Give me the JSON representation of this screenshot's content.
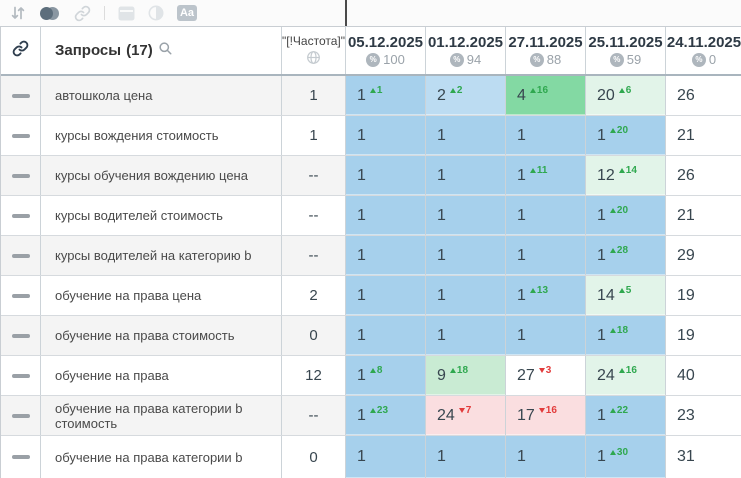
{
  "toolbar": {
    "aa_label": "Aa",
    "icons": [
      "sort-icon",
      "toggle-circles-icon",
      "link-icon",
      "window-icon",
      "contrast-icon",
      "text-style-icon"
    ]
  },
  "colors": {
    "palette": {
      "b1": "#a6d0ec",
      "b2": "#bcdcf2",
      "g1": "#83d9a3",
      "g2": "#c9ebd3",
      "g3": "#e2f4e9",
      "r1": "#fadee0",
      "w": "#ffffff"
    },
    "delta_up": "#2fa84f",
    "delta_down": "#e23b3b"
  },
  "table": {
    "header": {
      "queries_label": "Запросы",
      "queries_count": "(17)",
      "frequency_label": "\"[!Частота]\"",
      "percent_symbol": "%",
      "dates": [
        {
          "date": "05.12.2025",
          "percent": "100"
        },
        {
          "date": "01.12.2025",
          "percent": "94"
        },
        {
          "date": "27.11.2025",
          "percent": "88"
        },
        {
          "date": "25.11.2025",
          "percent": "59"
        },
        {
          "date": "24.11.2025",
          "percent": "0"
        }
      ]
    },
    "rows": [
      {
        "query": "автошкола цена",
        "frequency": "1",
        "cells": [
          {
            "v": "1",
            "bg": "b1",
            "d": "1",
            "dir": "up"
          },
          {
            "v": "2",
            "bg": "b2",
            "d": "2",
            "dir": "up"
          },
          {
            "v": "4",
            "bg": "g1",
            "d": "16",
            "dir": "up"
          },
          {
            "v": "20",
            "bg": "g3",
            "d": "6",
            "dir": "up"
          },
          {
            "v": "26",
            "bg": "w"
          }
        ]
      },
      {
        "query": "курсы вождения стоимость",
        "frequency": "1",
        "cells": [
          {
            "v": "1",
            "bg": "b1"
          },
          {
            "v": "1",
            "bg": "b1"
          },
          {
            "v": "1",
            "bg": "b1"
          },
          {
            "v": "1",
            "bg": "b1",
            "d": "20",
            "dir": "up"
          },
          {
            "v": "21",
            "bg": "w"
          }
        ]
      },
      {
        "query": "курсы обучения вождению цена",
        "frequency": "--",
        "cells": [
          {
            "v": "1",
            "bg": "b1"
          },
          {
            "v": "1",
            "bg": "b1"
          },
          {
            "v": "1",
            "bg": "b1",
            "d": "11",
            "dir": "up"
          },
          {
            "v": "12",
            "bg": "g3",
            "d": "14",
            "dir": "up"
          },
          {
            "v": "26",
            "bg": "w"
          }
        ]
      },
      {
        "query": "курсы водителей стоимость",
        "frequency": "--",
        "cells": [
          {
            "v": "1",
            "bg": "b1"
          },
          {
            "v": "1",
            "bg": "b1"
          },
          {
            "v": "1",
            "bg": "b1"
          },
          {
            "v": "1",
            "bg": "b1",
            "d": "20",
            "dir": "up"
          },
          {
            "v": "21",
            "bg": "w"
          }
        ]
      },
      {
        "query": "курсы водителей на категорию b",
        "frequency": "--",
        "cells": [
          {
            "v": "1",
            "bg": "b1"
          },
          {
            "v": "1",
            "bg": "b1"
          },
          {
            "v": "1",
            "bg": "b1"
          },
          {
            "v": "1",
            "bg": "b1",
            "d": "28",
            "dir": "up"
          },
          {
            "v": "29",
            "bg": "w"
          }
        ]
      },
      {
        "query": "обучение на права цена",
        "frequency": "2",
        "cells": [
          {
            "v": "1",
            "bg": "b1"
          },
          {
            "v": "1",
            "bg": "b1"
          },
          {
            "v": "1",
            "bg": "b1",
            "d": "13",
            "dir": "up"
          },
          {
            "v": "14",
            "bg": "g3",
            "d": "5",
            "dir": "up"
          },
          {
            "v": "19",
            "bg": "w"
          }
        ]
      },
      {
        "query": "обучение на права стоимость",
        "frequency": "0",
        "cells": [
          {
            "v": "1",
            "bg": "b1"
          },
          {
            "v": "1",
            "bg": "b1"
          },
          {
            "v": "1",
            "bg": "b1"
          },
          {
            "v": "1",
            "bg": "b1",
            "d": "18",
            "dir": "up"
          },
          {
            "v": "19",
            "bg": "w"
          }
        ]
      },
      {
        "query": "обучение на права",
        "frequency": "12",
        "cells": [
          {
            "v": "1",
            "bg": "b1",
            "d": "8",
            "dir": "up"
          },
          {
            "v": "9",
            "bg": "g2",
            "d": "18",
            "dir": "up"
          },
          {
            "v": "27",
            "bg": "w",
            "d": "3",
            "dir": "down"
          },
          {
            "v": "24",
            "bg": "g3",
            "d": "16",
            "dir": "up"
          },
          {
            "v": "40",
            "bg": "w"
          }
        ]
      },
      {
        "query": "обучение на права категории b стоимость",
        "frequency": "--",
        "cells": [
          {
            "v": "1",
            "bg": "b1",
            "d": "23",
            "dir": "up"
          },
          {
            "v": "24",
            "bg": "r1",
            "d": "7",
            "dir": "down"
          },
          {
            "v": "17",
            "bg": "r1",
            "d": "16",
            "dir": "down"
          },
          {
            "v": "1",
            "bg": "b1",
            "d": "22",
            "dir": "up"
          },
          {
            "v": "23",
            "bg": "w"
          }
        ]
      },
      {
        "query": "обучение на права категории b",
        "frequency": "0",
        "cells": [
          {
            "v": "1",
            "bg": "b1"
          },
          {
            "v": "1",
            "bg": "b1"
          },
          {
            "v": "1",
            "bg": "b1"
          },
          {
            "v": "1",
            "bg": "b1",
            "d": "30",
            "dir": "up"
          },
          {
            "v": "31",
            "bg": "w"
          }
        ]
      }
    ]
  }
}
